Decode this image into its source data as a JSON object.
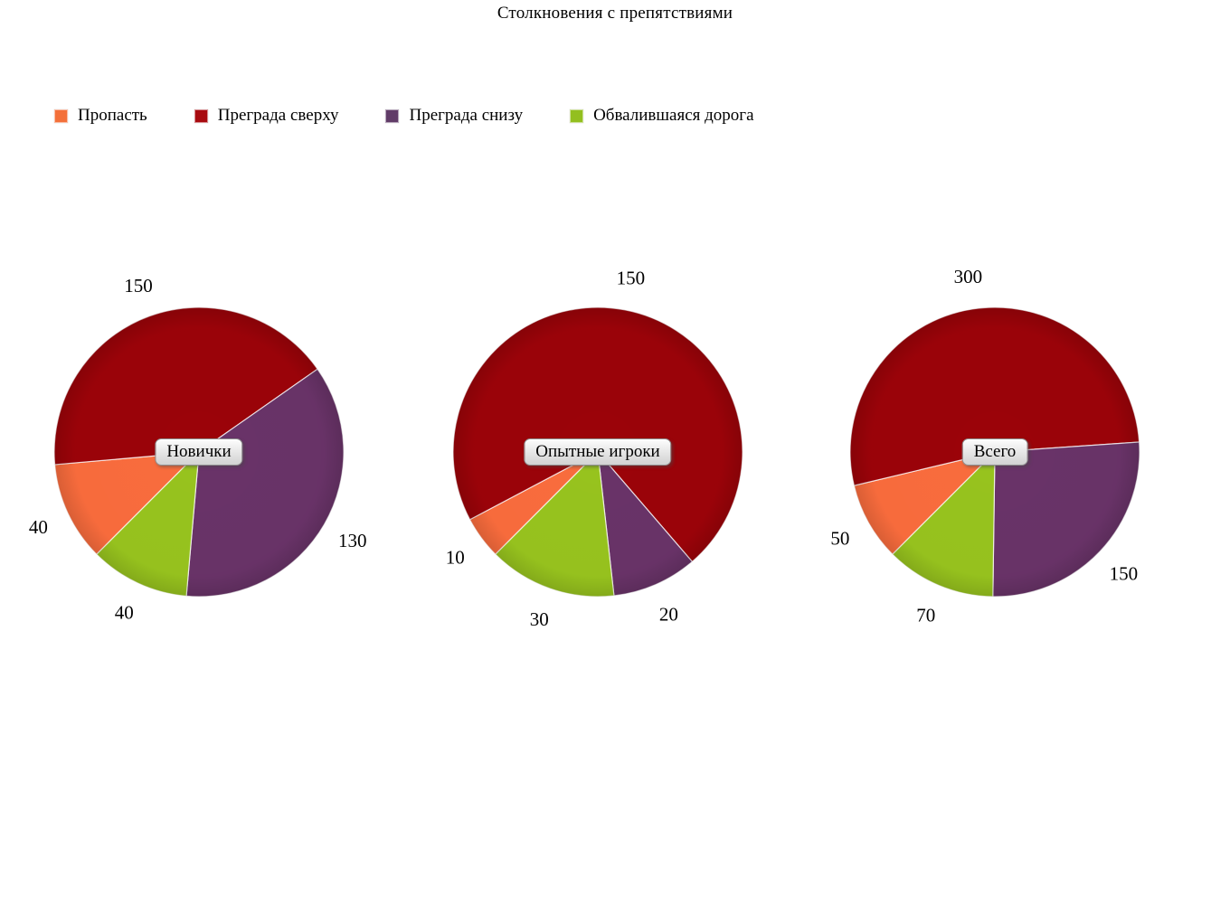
{
  "title": "Столкновения с препятствиями",
  "legend": {
    "position": "top",
    "items": [
      {
        "label": "Пропасть",
        "color": "#F3703A"
      },
      {
        "label": "Преграда сверху",
        "color": "#A80B10"
      },
      {
        "label": "Преграда снизу",
        "color": "#613C68"
      },
      {
        "label": "Обвалившаяся дорога",
        "color": "#93BF1F"
      }
    ]
  },
  "chart_data": [
    {
      "type": "pie",
      "title": "Новички",
      "categories": [
        "Пропасть",
        "Преграда сверху",
        "Преграда снизу",
        "Обвалившаяся дорога"
      ],
      "values": [
        40,
        150,
        130,
        40
      ],
      "colors": [
        "#F96C3D",
        "#9B0309",
        "#693368",
        "#97C31E"
      ],
      "total": 360,
      "start_angle_deg": 225,
      "direction": "clockwise",
      "label_format": "value",
      "labels_outside": true,
      "background": "#FFFFFF"
    },
    {
      "type": "pie",
      "title": "Опытные игроки",
      "categories": [
        "Пропасть",
        "Преграда сверху",
        "Преграда снизу",
        "Обвалившаяся дорога"
      ],
      "values": [
        10,
        150,
        20,
        30
      ],
      "colors": [
        "#F96C3D",
        "#9B0309",
        "#693368",
        "#97C31E"
      ],
      "total": 210,
      "start_angle_deg": 225,
      "direction": "clockwise",
      "label_format": "value",
      "labels_outside": true,
      "background": "#FFFFFF"
    },
    {
      "type": "pie",
      "title": "Всего",
      "categories": [
        "Пропасть",
        "Преграда сверху",
        "Преграда снизу",
        "Обвалившаяся дорога"
      ],
      "values": [
        50,
        300,
        150,
        70
      ],
      "colors": [
        "#F96C3D",
        "#9B0309",
        "#693368",
        "#97C31E"
      ],
      "total": 570,
      "start_angle_deg": 225,
      "direction": "clockwise",
      "label_format": "value",
      "labels_outside": true,
      "background": "#FFFFFF"
    }
  ]
}
